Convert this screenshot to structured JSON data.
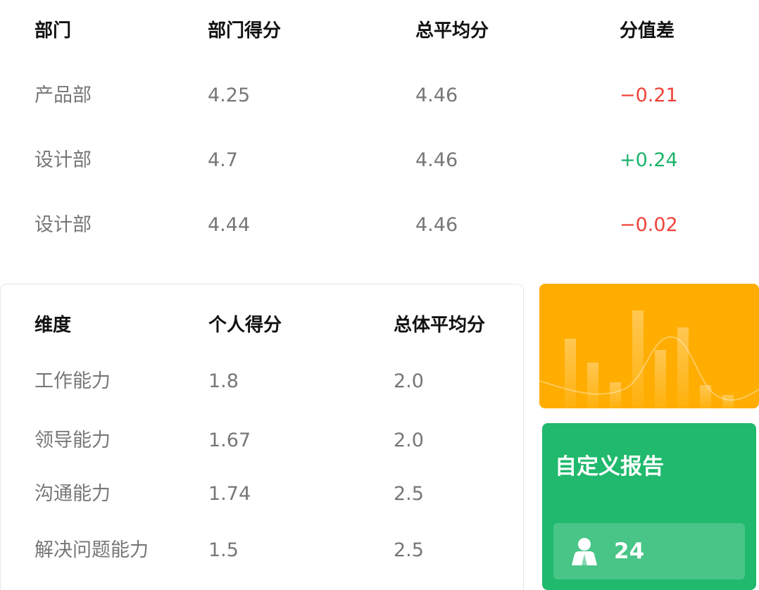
{
  "department_table": {
    "headers": [
      "部门",
      "部门得分",
      "总平均分",
      "分值差"
    ],
    "rows": [
      {
        "department": "产品部",
        "score": "4.25",
        "overall_avg": "4.46",
        "diff": "−0.21",
        "diff_sign": "negative"
      },
      {
        "department": "设计部",
        "score": "4.7",
        "overall_avg": "4.46",
        "diff": "+0.24",
        "diff_sign": "positive"
      },
      {
        "department": "设计部",
        "score": "4.44",
        "overall_avg": "4.46",
        "diff": "−0.02",
        "diff_sign": "negative"
      }
    ]
  },
  "dimension_table": {
    "headers": [
      "维度",
      "个人得分",
      "总体平均分"
    ],
    "rows": [
      {
        "dimension": "工作能力",
        "personal": "1.8",
        "overall": "2.0"
      },
      {
        "dimension": "领导能力",
        "personal": "1.67",
        "overall": "2.0"
      },
      {
        "dimension": "沟通能力",
        "personal": "1.74",
        "overall": "2.5"
      },
      {
        "dimension": "解决问题能力",
        "personal": "1.5",
        "overall": "2.5"
      }
    ]
  },
  "chart_card": {
    "icon": "bar-chart-decoration",
    "color": "#ffad00"
  },
  "custom_report": {
    "title": "自定义报告",
    "count": "24",
    "icon": "person-icon",
    "color": "#20b96d"
  },
  "colors": {
    "negative": "#f0433a",
    "positive": "#1db36b"
  }
}
